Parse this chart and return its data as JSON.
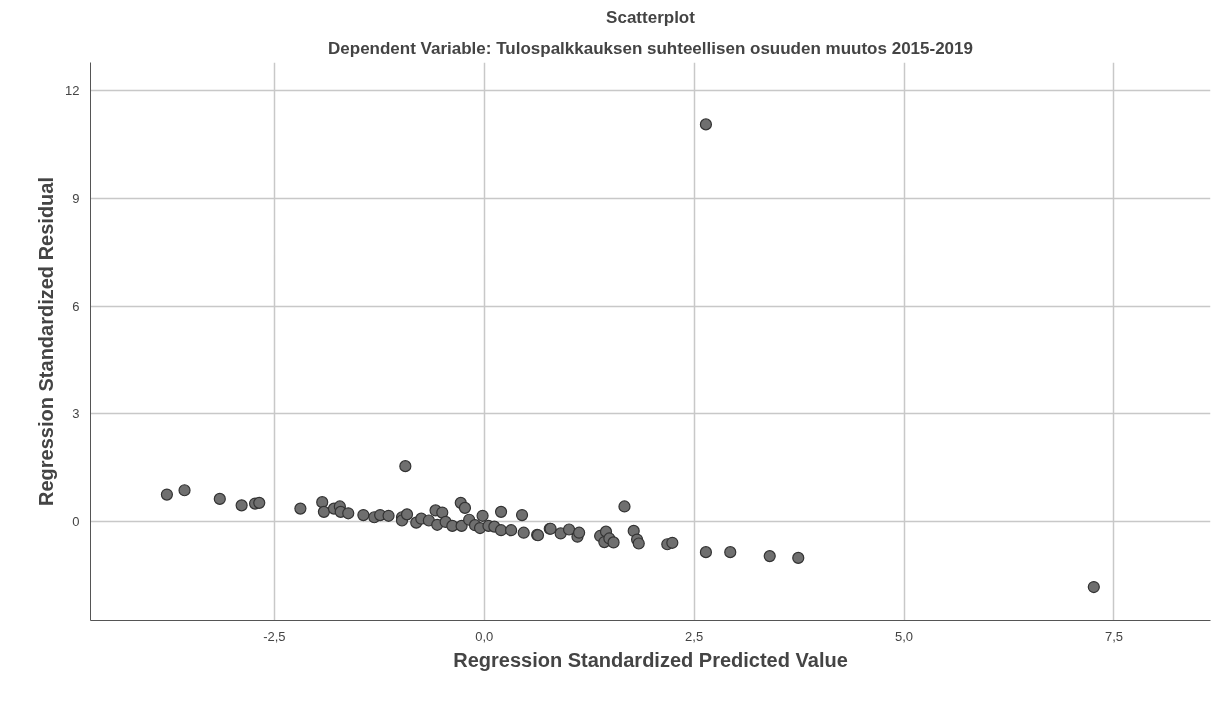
{
  "chart_data": {
    "type": "scatter",
    "title": "Scatterplot",
    "subtitle": "Dependent Variable: Tulospalkkauksen suhteellisen osuuden muutos 2015-2019",
    "xlabel": "Regression Standardized Predicted Value",
    "ylabel": "Regression Standardized Residual",
    "xlim": [
      -4.69,
      8.65
    ],
    "ylim": [
      -2.74,
      12.77
    ],
    "xticks": [
      {
        "value": -2.5,
        "label": "-2,5"
      },
      {
        "value": 0,
        "label": "0,0"
      },
      {
        "value": 2.5,
        "label": "2,5"
      },
      {
        "value": 5,
        "label": "5,0"
      },
      {
        "value": 7.5,
        "label": "7,5"
      }
    ],
    "yticks": [
      0,
      3,
      6,
      9,
      12
    ],
    "grid": true,
    "marker": "circle",
    "series": [
      {
        "color": "#6f6f6f",
        "x": [
          -3.78,
          -3.57,
          -3.15,
          -2.89,
          -2.73,
          -2.68,
          -2.19,
          -1.93,
          -1.91,
          -1.79,
          -1.72,
          -1.71,
          -1.62,
          -1.44,
          -1.31,
          -1.24,
          -1.14,
          -0.98,
          -0.98,
          -0.94,
          -0.92,
          -0.81,
          -0.75,
          -0.66,
          -0.58,
          -0.56,
          -0.5,
          -0.46,
          -0.38,
          -0.28,
          -0.23,
          -0.27,
          -0.18,
          -0.11,
          -0.05,
          -0.02,
          0.05,
          0.12,
          0.2,
          0.2,
          0.32,
          0.45,
          0.47,
          0.63,
          0.78,
          0.64,
          0.79,
          0.91,
          1.01,
          1.11,
          1.13,
          1.38,
          1.45,
          1.43,
          1.49,
          1.54,
          1.67,
          1.78,
          1.82,
          1.84,
          2.18,
          2.24,
          2.64,
          2.93,
          3.4,
          3.74,
          2.64,
          7.26
        ],
        "values": [
          0.76,
          0.88,
          0.64,
          0.46,
          0.51,
          0.53,
          0.37,
          0.55,
          0.28,
          0.37,
          0.43,
          0.28,
          0.24,
          0.19,
          0.13,
          0.19,
          0.17,
          0.13,
          0.04,
          1.55,
          0.21,
          -0.02,
          0.09,
          0.04,
          0.32,
          -0.08,
          0.26,
          0.0,
          -0.11,
          0.53,
          0.39,
          -0.11,
          0.06,
          -0.09,
          -0.17,
          0.17,
          -0.11,
          -0.13,
          0.28,
          -0.23,
          -0.23,
          0.19,
          -0.3,
          -0.36,
          -0.19,
          -0.37,
          -0.19,
          -0.32,
          -0.21,
          -0.41,
          -0.3,
          -0.39,
          -0.27,
          -0.56,
          -0.46,
          -0.57,
          0.43,
          -0.25,
          -0.49,
          -0.6,
          -0.62,
          -0.58,
          -0.84,
          -0.84,
          -0.95,
          -1.0,
          11.05,
          -1.81
        ]
      }
    ]
  }
}
